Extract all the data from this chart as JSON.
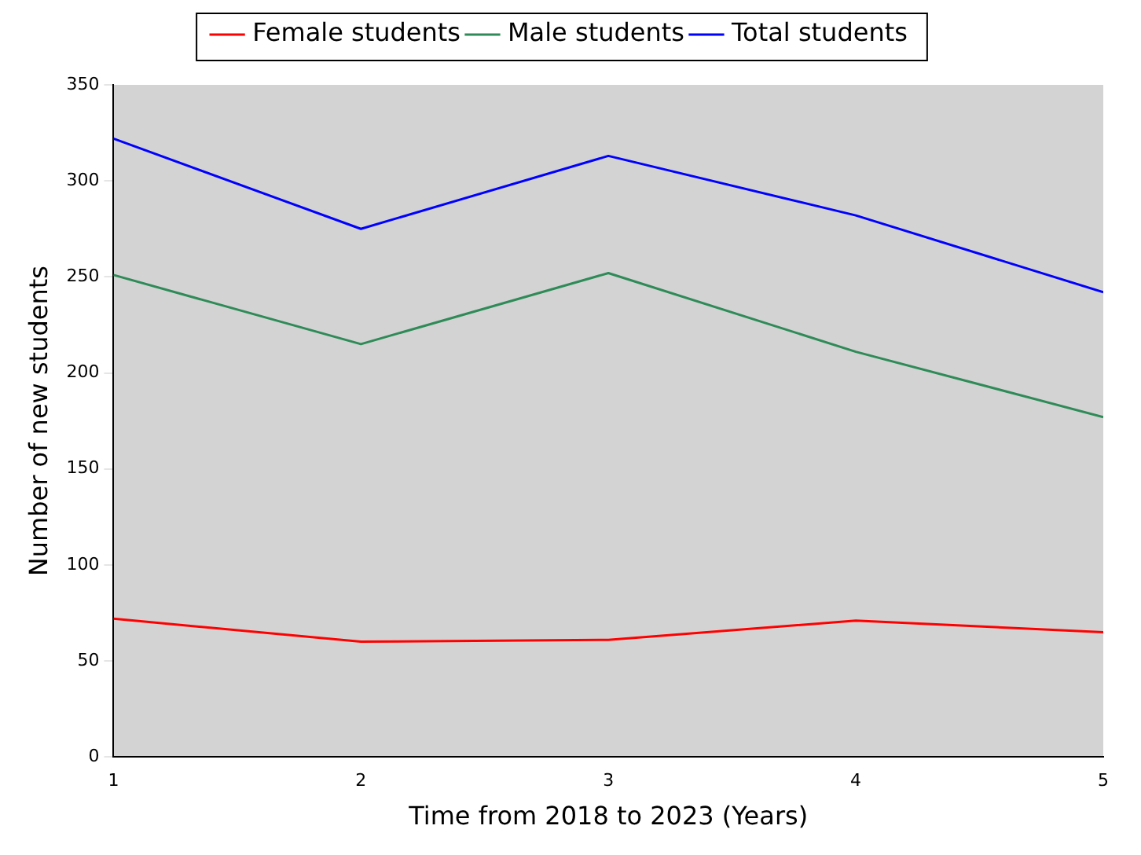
{
  "chart_data": {
    "type": "line",
    "xlabel": "Time from 2018 to 2023 (Years)",
    "ylabel": "Number of new students",
    "x": [
      1,
      2,
      3,
      4,
      5
    ],
    "xlim": [
      1,
      5
    ],
    "xticks": [
      1,
      2,
      3,
      4,
      5
    ],
    "ylim": [
      0,
      350
    ],
    "yticks": [
      0,
      50,
      100,
      150,
      200,
      250,
      300,
      350
    ],
    "legend": "top",
    "grid": false,
    "marker": "none",
    "line_style": "solid",
    "series": [
      {
        "name": "Female students",
        "color": "#ff0000",
        "values": [
          72,
          60,
          61,
          71,
          65
        ]
      },
      {
        "name": "Male students",
        "color": "#2e8b57",
        "values": [
          251,
          215,
          252,
          211,
          177
        ]
      },
      {
        "name": "Total students",
        "color": "#0000ff",
        "values": [
          322,
          275,
          313,
          282,
          242
        ]
      }
    ]
  }
}
